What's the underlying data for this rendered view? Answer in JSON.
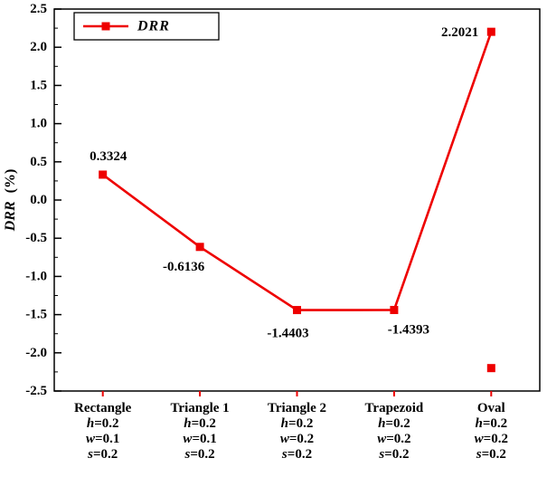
{
  "chart_data": {
    "type": "line",
    "title": "",
    "ylabel_italic": "DRR",
    "ylabel_rest": "(%)",
    "ylim": [
      -2.5,
      2.5
    ],
    "ytick_major": 0.5,
    "ytick_minor": 0.25,
    "grid": false,
    "legend": {
      "label": "DRR",
      "position": "top-left"
    },
    "line_color": "#ee0000",
    "axis_color": "#000000",
    "categories": [
      {
        "name": "Rectangle",
        "params": [
          "h=0.2",
          "w=0.1",
          "s=0.2"
        ]
      },
      {
        "name": "Triangle 1",
        "params": [
          "h=0.2",
          "w=0.1",
          "s=0.2"
        ]
      },
      {
        "name": "Triangle 2",
        "params": [
          "h=0.2",
          "w=0.2",
          "s=0.2"
        ]
      },
      {
        "name": "Trapezoid",
        "params": [
          "h=0.2",
          "w=0.2",
          "s=0.2"
        ]
      },
      {
        "name": "Oval",
        "params": [
          "h=0.2",
          "w=0.2",
          "s=0.2"
        ]
      }
    ],
    "series": [
      {
        "name": "DRR",
        "values": [
          0.3324,
          -0.6136,
          -1.4403,
          -1.4393,
          2.2021
        ]
      }
    ],
    "point_labels": [
      "0.3324",
      "-0.6136",
      "-1.4403",
      "-1.4393",
      "2.2021"
    ],
    "extra_marker": {
      "category_index": 4,
      "value": -2.2
    },
    "y_tick_labels": [
      "2.5",
      "2.0",
      "1.5",
      "1.0",
      "0.5",
      "0.0",
      "-0.5",
      "-1.0",
      "-1.5",
      "-2.0",
      "-2.5"
    ]
  }
}
